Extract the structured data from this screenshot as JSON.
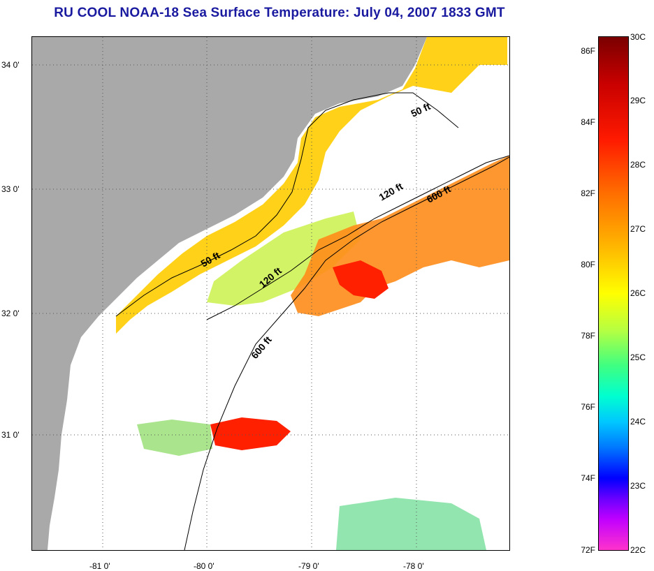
{
  "title": "RU COOL  NOAA-18  Sea Surface Temperature:  July 04, 2007 1833 GMT",
  "y_labels": [
    "34 0'",
    "33 0'",
    "32 0'",
    "31 0'"
  ],
  "x_labels": [
    "-81 0'",
    "-80 0'",
    "-79 0'",
    "-78 0'"
  ],
  "contours": [
    "50 ft",
    "50 ft",
    "120 ft",
    "120 ft",
    "600 ft",
    "600 ft"
  ],
  "colorbar": {
    "fahrenheit": [
      "86F",
      "84F",
      "82F",
      "80F",
      "78F",
      "76F",
      "74F",
      "72F"
    ],
    "celsius": [
      "30C",
      "29C",
      "28C",
      "27C",
      "26C",
      "25C",
      "24C",
      "23C",
      "22C"
    ]
  },
  "colors": {
    "land": "#a9a9a9",
    "title": "#1a1aa0",
    "no_data": "#ffffff"
  }
}
